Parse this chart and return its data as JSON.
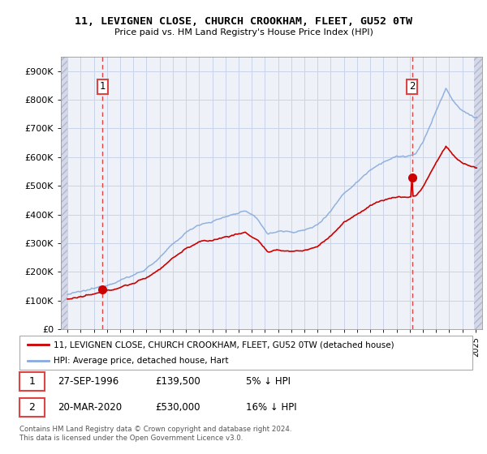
{
  "title": "11, LEVIGNEN CLOSE, CHURCH CROOKHAM, FLEET, GU52 0TW",
  "subtitle": "Price paid vs. HM Land Registry's House Price Index (HPI)",
  "sale1_year": 1996,
  "sale1_month": 9,
  "sale1_price": 139500,
  "sale2_year": 2020,
  "sale2_month": 3,
  "sale2_price": 530000,
  "sale1_discount": 0.95,
  "sale2_discount": 0.84,
  "legend_house": "11, LEVIGNEN CLOSE, CHURCH CROOKHAM, FLEET, GU52 0TW (detached house)",
  "legend_hpi": "HPI: Average price, detached house, Hart",
  "footer": "Contains HM Land Registry data © Crown copyright and database right 2024.\nThis data is licensed under the Open Government Licence v3.0.",
  "house_color": "#cc0000",
  "hpi_color": "#88aadd",
  "dashed_line_color": "#dd4444",
  "grid_color": "#c8d4e8",
  "plot_bg_color": "#eef2f8",
  "hatch_bg_color": "#d4d8e8",
  "ylim": [
    0,
    950000
  ],
  "yticks": [
    0,
    100000,
    200000,
    300000,
    400000,
    500000,
    600000,
    700000,
    800000,
    900000
  ],
  "ytick_labels": [
    "£0",
    "£100K",
    "£200K",
    "£300K",
    "£400K",
    "£500K",
    "£600K",
    "£700K",
    "£800K",
    "£900K"
  ],
  "xstart_year": 1994,
  "xend_year": 2025,
  "sale1_info_date": "27-SEP-1996",
  "sale1_info_price": "£139,500",
  "sale1_info_hpi": "5% ↓ HPI",
  "sale2_info_date": "20-MAR-2020",
  "sale2_info_price": "£530,000",
  "sale2_info_hpi": "16% ↓ HPI"
}
